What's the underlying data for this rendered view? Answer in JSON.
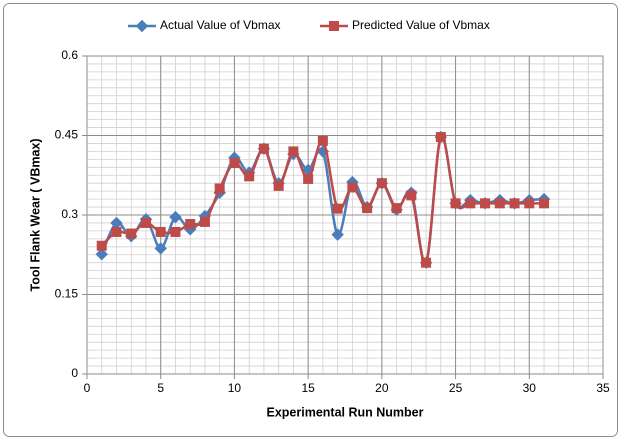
{
  "chart_data": {
    "type": "line",
    "x_label": "Experimental Run Number",
    "y_label": "Tool Flank Wear ( VBmax)",
    "x": [
      1,
      2,
      3,
      4,
      5,
      6,
      7,
      8,
      9,
      10,
      11,
      12,
      13,
      14,
      15,
      16,
      17,
      18,
      19,
      20,
      21,
      22,
      23,
      24,
      25,
      26,
      27,
      28,
      29,
      30,
      31
    ],
    "series": [
      {
        "name": "Actual Value of Vbmax",
        "color": "#4a7ebb",
        "marker": "diamond",
        "values": [
          0.226,
          0.285,
          0.26,
          0.292,
          0.237,
          0.296,
          0.273,
          0.298,
          0.342,
          0.408,
          0.38,
          0.425,
          0.36,
          0.415,
          0.385,
          0.42,
          0.263,
          0.362,
          0.315,
          0.36,
          0.31,
          0.342,
          0.21,
          0.447,
          0.322,
          0.328,
          0.322,
          0.328,
          0.322,
          0.328,
          0.33
        ]
      },
      {
        "name": "Predicted Value of Vbmax",
        "color": "#be4b48",
        "marker": "square",
        "values": [
          0.242,
          0.268,
          0.265,
          0.285,
          0.268,
          0.268,
          0.283,
          0.287,
          0.35,
          0.398,
          0.373,
          0.425,
          0.355,
          0.42,
          0.368,
          0.44,
          0.312,
          0.352,
          0.313,
          0.36,
          0.313,
          0.337,
          0.21,
          0.447,
          0.322,
          0.322,
          0.322,
          0.322,
          0.322,
          0.322,
          0.322
        ]
      }
    ],
    "xlim": [
      0,
      35
    ],
    "xticks": [
      0,
      5,
      10,
      15,
      20,
      25,
      30,
      35
    ],
    "ylim": [
      0,
      0.6
    ],
    "yticks": [
      0,
      0.15,
      0.3,
      0.45,
      0.6
    ],
    "x_minor_step": 1,
    "y_minor_step": 0.015,
    "grid": true,
    "smooth": true,
    "legend": "top"
  }
}
